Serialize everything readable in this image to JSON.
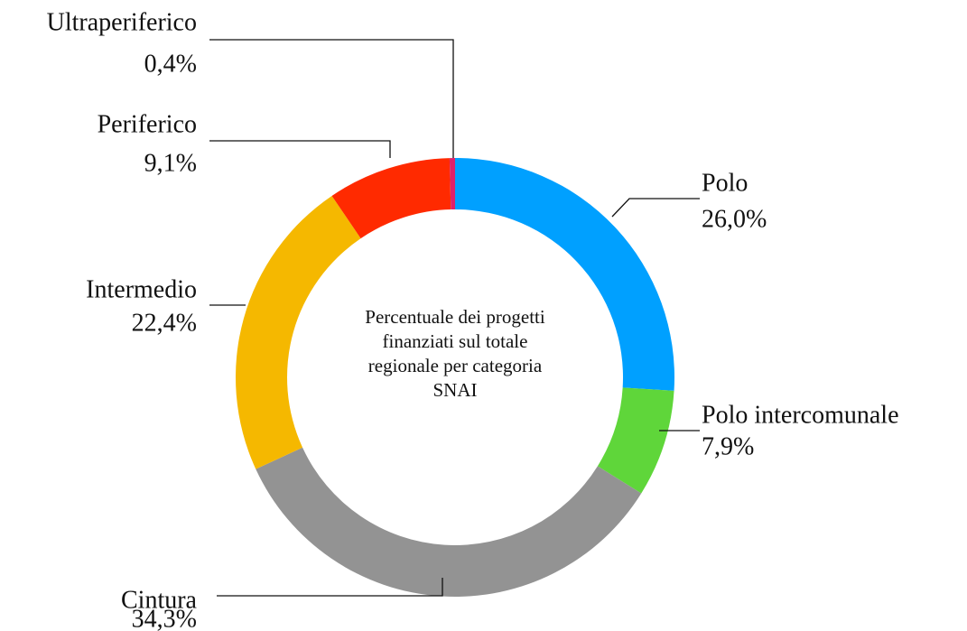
{
  "chart_data": {
    "type": "donut",
    "title": "Percentuale dei progetti finanziati sul totale regionale per categoria SNAI",
    "categories": [
      "Polo",
      "Polo intercomunale",
      "Cintura",
      "Intermedio",
      "Periferico",
      "Ultraperiferico"
    ],
    "values": [
      26.0,
      7.9,
      34.3,
      22.4,
      9.1,
      0.4
    ],
    "value_labels": [
      "26,0%",
      "7,9%",
      "34,3%",
      "22,4%",
      "9,1%",
      "0,4%"
    ],
    "colors": [
      "#00a0ff",
      "#5fd63a",
      "#939393",
      "#f5b800",
      "#ff2a00",
      "#e0206a"
    ]
  }
}
